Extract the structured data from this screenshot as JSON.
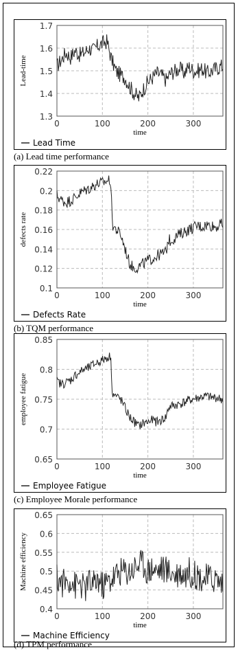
{
  "chart_data": [
    {
      "type": "line",
      "caption": "(a) Lead time performance",
      "xlabel": "time",
      "ylabel": "Lead-time",
      "legend": "Lead Time",
      "legend_position": "bottom-left",
      "grid": true,
      "xlim": [
        0,
        365
      ],
      "ylim": [
        1.3,
        1.7
      ],
      "xticks": [
        "0",
        "100",
        "200",
        "300"
      ],
      "yticks": [
        "1.3",
        "1.4",
        "1.5",
        "1.6",
        "1.7"
      ],
      "series": [
        {
          "x": [
            0,
            10,
            20,
            30,
            40,
            50,
            60,
            70,
            80,
            90,
            100,
            110,
            120,
            130,
            140,
            150,
            160,
            170,
            180,
            190,
            200,
            210,
            220,
            230,
            240,
            250,
            260,
            270,
            280,
            290,
            300,
            310,
            320,
            330,
            340,
            350,
            360,
            365
          ],
          "values": [
            1.52,
            1.55,
            1.58,
            1.56,
            1.59,
            1.57,
            1.58,
            1.6,
            1.59,
            1.61,
            1.62,
            1.63,
            1.55,
            1.5,
            1.48,
            1.47,
            1.43,
            1.4,
            1.38,
            1.42,
            1.45,
            1.47,
            1.49,
            1.48,
            1.46,
            1.49,
            1.5,
            1.51,
            1.49,
            1.52,
            1.5,
            1.5,
            1.51,
            1.49,
            1.5,
            1.51,
            1.52,
            1.52
          ],
          "amplitude": 0.035
        }
      ]
    },
    {
      "type": "line",
      "caption": "(b) TQM performance",
      "xlabel": "time",
      "ylabel": "defects rate",
      "legend": "Defects Rate",
      "legend_position": "bottom-left",
      "grid": true,
      "xlim": [
        0,
        365
      ],
      "ylim": [
        0.1,
        0.22
      ],
      "xticks": [
        "0",
        "100",
        "200",
        "300"
      ],
      "yticks": [
        "0.1",
        "0.12",
        "0.14",
        "0.16",
        "0.18",
        "0.2",
        "0.22"
      ],
      "series": [
        {
          "x": [
            0,
            10,
            20,
            30,
            40,
            50,
            60,
            70,
            80,
            90,
            100,
            110,
            118,
            122,
            130,
            140,
            150,
            160,
            170,
            180,
            190,
            200,
            210,
            220,
            230,
            240,
            245,
            250,
            260,
            270,
            280,
            290,
            300,
            310,
            320,
            330,
            340,
            350,
            360,
            365
          ],
          "values": [
            0.195,
            0.19,
            0.188,
            0.19,
            0.193,
            0.197,
            0.2,
            0.202,
            0.205,
            0.207,
            0.208,
            0.21,
            0.211,
            0.165,
            0.16,
            0.155,
            0.14,
            0.125,
            0.12,
            0.122,
            0.125,
            0.128,
            0.13,
            0.133,
            0.135,
            0.137,
            0.15,
            0.148,
            0.152,
            0.155,
            0.158,
            0.16,
            0.162,
            0.164,
            0.163,
            0.165,
            0.164,
            0.163,
            0.165,
            0.165
          ],
          "amplitude": 0.006
        }
      ]
    },
    {
      "type": "line",
      "caption": "(c) Employee Morale performance",
      "xlabel": "time",
      "ylabel": "employee fatigue",
      "legend": "Employee Fatigue",
      "legend_position": "bottom-left",
      "grid": true,
      "xlim": [
        0,
        365
      ],
      "ylim": [
        0.65,
        0.85
      ],
      "xticks": [
        "0",
        "100",
        "200",
        "300"
      ],
      "yticks": [
        "0.65",
        "0.7",
        "0.75",
        "0.8",
        "0.85"
      ],
      "series": [
        {
          "x": [
            0,
            10,
            20,
            30,
            40,
            50,
            60,
            70,
            80,
            90,
            100,
            110,
            118,
            122,
            130,
            140,
            150,
            160,
            170,
            180,
            190,
            200,
            210,
            220,
            230,
            240,
            245,
            250,
            260,
            270,
            280,
            290,
            300,
            310,
            320,
            330,
            340,
            350,
            360,
            365
          ],
          "values": [
            0.78,
            0.775,
            0.778,
            0.782,
            0.79,
            0.795,
            0.8,
            0.802,
            0.808,
            0.812,
            0.815,
            0.82,
            0.822,
            0.76,
            0.755,
            0.75,
            0.735,
            0.72,
            0.712,
            0.705,
            0.71,
            0.712,
            0.715,
            0.712,
            0.715,
            0.72,
            0.735,
            0.738,
            0.74,
            0.742,
            0.745,
            0.748,
            0.75,
            0.752,
            0.754,
            0.755,
            0.752,
            0.753,
            0.75,
            0.75
          ],
          "amplitude": 0.008
        }
      ]
    },
    {
      "type": "line",
      "caption": "(d) TPM performance",
      "xlabel": "time",
      "ylabel": "Machine efficiency",
      "legend": "Machine Efficiency",
      "legend_position": "bottom-left",
      "grid": true,
      "xlim": [
        0,
        365
      ],
      "ylim": [
        0.4,
        0.65
      ],
      "xticks": [
        "0",
        "100",
        "200",
        "300"
      ],
      "yticks": [
        "0.4",
        "0.45",
        "0.5",
        "0.55",
        "0.6",
        "0.65"
      ],
      "series": [
        {
          "x": [
            0,
            10,
            20,
            30,
            40,
            50,
            60,
            70,
            80,
            90,
            100,
            110,
            120,
            130,
            140,
            150,
            160,
            170,
            180,
            190,
            200,
            210,
            220,
            230,
            240,
            250,
            260,
            270,
            280,
            290,
            300,
            310,
            320,
            330,
            340,
            350,
            360,
            365
          ],
          "values": [
            0.48,
            0.47,
            0.47,
            0.48,
            0.46,
            0.47,
            0.45,
            0.47,
            0.46,
            0.48,
            0.46,
            0.47,
            0.48,
            0.49,
            0.5,
            0.5,
            0.5,
            0.51,
            0.52,
            0.52,
            0.5,
            0.51,
            0.5,
            0.51,
            0.5,
            0.5,
            0.49,
            0.5,
            0.49,
            0.5,
            0.49,
            0.49,
            0.48,
            0.48,
            0.48,
            0.48,
            0.47,
            0.47
          ],
          "amplitude": 0.04
        }
      ]
    }
  ]
}
